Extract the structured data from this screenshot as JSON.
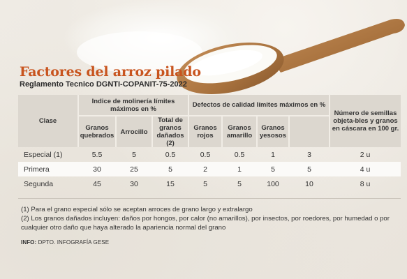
{
  "title": "Factores del arroz pilado",
  "subtitle": "Reglamento Tecnico DGNTI-COPANIT-75-2022",
  "table": {
    "clase_header": "Clase",
    "group_molineria": "Indice de molinería límites máximos en %",
    "group_defectos": "Defectos de calidad límites máximos en %",
    "semillas_header": "Número de semillas objeta-bles y granos en cáscara en 100 gr.",
    "subheaders": [
      "Granos quebrados",
      "Arrocillo",
      "Total de granos dañados (2)",
      "Granos rojos",
      "Granos amarillo",
      "Granos yesosos",
      ""
    ],
    "rows": [
      {
        "clase": "Especial (1)",
        "values": [
          "5.5",
          "5",
          "0.5",
          "0.5",
          "0.5",
          "1",
          "3",
          "2 u"
        ]
      },
      {
        "clase": "Primera",
        "values": [
          "30",
          "25",
          "5",
          "2",
          "1",
          "5",
          "5",
          "4 u"
        ]
      },
      {
        "clase": "Segunda",
        "values": [
          "45",
          "30",
          "15",
          "5",
          "5",
          "100",
          "10",
          "8 u"
        ]
      }
    ]
  },
  "notes": [
    "(1) Para el grano especial sólo se aceptan arroces de grano largo y extralargo",
    "(2) Los granos dañados incluyen: daños por hongos, por calor (no amarillos), por insectos, por roedores, por humedad o por cualquier otro daño que haya alterado la apariencia normal del grano"
  ],
  "info": {
    "label": "INFO:",
    "text": "DPTO. INFOGRAFÍA GESE"
  },
  "colors": {
    "title": "#c8541e",
    "header_bg": "#dcd7cf",
    "spoon": "#b07a45"
  }
}
